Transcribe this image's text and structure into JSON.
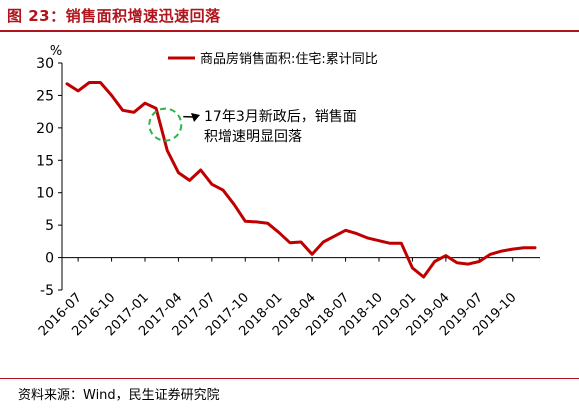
{
  "header": {
    "title": "图 23：销售面积增速迅速回落"
  },
  "footer": {
    "source": "资料来源：Wind，民生证券研究院"
  },
  "chart_data": {
    "type": "line",
    "y_unit_label": "%",
    "ylim": [
      -5,
      30
    ],
    "y_ticks": [
      -5,
      0,
      5,
      10,
      15,
      20,
      25,
      30
    ],
    "x_tick_labels": [
      "2016-07",
      "2016-10",
      "2017-01",
      "2017-04",
      "2017-07",
      "2017-10",
      "2018-01",
      "2018-04",
      "2018-07",
      "2018-10",
      "2019-01",
      "2019-04",
      "2019-07",
      "2019-10"
    ],
    "legend": {
      "placement": "top-center",
      "label": "商品房销售面积:住宅:累计同比"
    },
    "series": [
      {
        "name": "商品房销售面积:住宅:累计同比",
        "color": "#c00000",
        "x": [
          "2016-06",
          "2016-07",
          "2016-08",
          "2016-09",
          "2016-10",
          "2016-11",
          "2016-12",
          "2017-01",
          "2017-02",
          "2017-03",
          "2017-04",
          "2017-05",
          "2017-06",
          "2017-07",
          "2017-08",
          "2017-09",
          "2017-10",
          "2017-11",
          "2017-12",
          "2018-01",
          "2018-02",
          "2018-03",
          "2018-04",
          "2018-05",
          "2018-06",
          "2018-07",
          "2018-08",
          "2018-09",
          "2018-10",
          "2018-11",
          "2018-12",
          "2019-01",
          "2019-02",
          "2019-03",
          "2019-04",
          "2019-05",
          "2019-06",
          "2019-07",
          "2019-08",
          "2019-09",
          "2019-10",
          "2019-11",
          "2019-12"
        ],
        "values": [
          26.8,
          25.7,
          27.0,
          27.0,
          25.0,
          22.7,
          22.4,
          23.8,
          23.0,
          16.5,
          13.1,
          11.9,
          13.5,
          11.3,
          10.4,
          8.2,
          5.6,
          5.5,
          5.3,
          3.9,
          2.3,
          2.4,
          0.5,
          2.4,
          3.3,
          4.2,
          3.7,
          3.0,
          2.6,
          2.2,
          2.2,
          -1.6,
          -3.0,
          -0.6,
          0.3,
          -0.8,
          -1.0,
          -0.6,
          0.5,
          1.0,
          1.3,
          1.5,
          1.5
        ]
      }
    ],
    "annotation": {
      "lines": [
        "17年3月新政后，销售面",
        "积增速明显回落"
      ],
      "anchor_x": "2017-03",
      "circle_color": "#2fb24a"
    }
  }
}
